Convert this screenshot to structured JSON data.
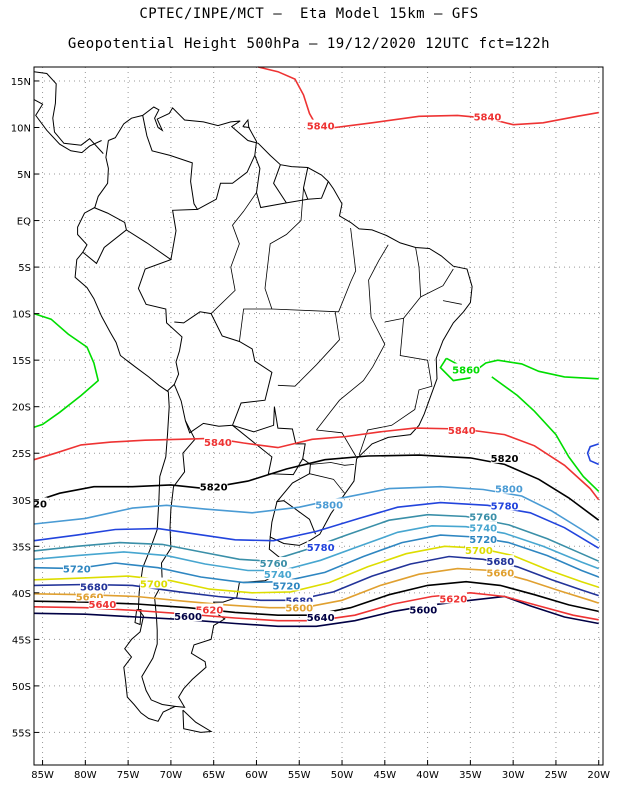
{
  "header": {
    "line1": "CPTEC/INPE/MCT –  Eta Model 15km – GFS",
    "line2": "Geopotential Height 500hPa – 19/12/2020 12UTC fct=122h"
  },
  "map": {
    "lon_range": [
      -86,
      -19.5
    ],
    "lat_range": [
      -58.5,
      16.5
    ],
    "lat_ticks": [
      {
        "value": 15,
        "label": "15N"
      },
      {
        "value": 10,
        "label": "10N"
      },
      {
        "value": 5,
        "label": "5N"
      },
      {
        "value": 0,
        "label": "EQ"
      },
      {
        "value": -5,
        "label": "5S"
      },
      {
        "value": -10,
        "label": "10S"
      },
      {
        "value": -15,
        "label": "15S"
      },
      {
        "value": -20,
        "label": "20S"
      },
      {
        "value": -25,
        "label": "25S"
      },
      {
        "value": -30,
        "label": "30S"
      },
      {
        "value": -35,
        "label": "35S"
      },
      {
        "value": -40,
        "label": "40S"
      },
      {
        "value": -45,
        "label": "45S"
      },
      {
        "value": -50,
        "label": "50S"
      },
      {
        "value": -55,
        "label": "55S"
      }
    ],
    "lon_ticks": [
      {
        "value": -85,
        "label": "85W"
      },
      {
        "value": -80,
        "label": "80W"
      },
      {
        "value": -75,
        "label": "75W"
      },
      {
        "value": -70,
        "label": "70W"
      },
      {
        "value": -65,
        "label": "65W"
      },
      {
        "value": -60,
        "label": "60W"
      },
      {
        "value": -55,
        "label": "55W"
      },
      {
        "value": -50,
        "label": "50W"
      },
      {
        "value": -45,
        "label": "45W"
      },
      {
        "value": -40,
        "label": "40W"
      },
      {
        "value": -35,
        "label": "35W"
      },
      {
        "value": -30,
        "label": "30W"
      },
      {
        "value": -25,
        "label": "25W"
      },
      {
        "value": -20,
        "label": "20W"
      }
    ],
    "grid": "dotted",
    "land_outline_color": "#000000",
    "contours": [
      {
        "level": "5860",
        "color": "#00dd00",
        "label_pos": [
          -35.5,
          -16
        ]
      },
      {
        "level": "5840",
        "color": "#ee3333",
        "label_pos": [
          -36,
          -22.5
        ]
      },
      {
        "level": "5820",
        "color": "#000000",
        "label_pos": [
          -31,
          -25.5
        ]
      },
      {
        "level": "5800",
        "color": "#4a9bd4",
        "label_pos": [
          -30.5,
          -28.8
        ]
      },
      {
        "level": "5780",
        "color": "#2244dd",
        "label_pos": [
          -31,
          -30.6
        ]
      },
      {
        "level": "5760",
        "color": "#3a8fa8",
        "label_pos": [
          -33.5,
          -31.8
        ]
      },
      {
        "level": "5740",
        "color": "#47a6d0",
        "label_pos": [
          -33.5,
          -33.0
        ]
      },
      {
        "level": "5720",
        "color": "#2e86c1",
        "label_pos": [
          -33.5,
          -34.2
        ]
      },
      {
        "level": "5700",
        "color": "#dddd00",
        "label_pos": [
          -34,
          -35.4
        ]
      },
      {
        "level": "5680",
        "color": "#223399",
        "label_pos": [
          -31.5,
          -36.6
        ]
      },
      {
        "level": "5660",
        "color": "#e0a030",
        "label_pos": [
          -31.5,
          -37.8
        ]
      },
      {
        "level": "5620",
        "color": "#ee3333",
        "label_pos": [
          -37,
          -40.6
        ]
      },
      {
        "level": "5600",
        "color": "#000044",
        "label_pos": [
          -40.5,
          -41.8
        ]
      }
    ],
    "extra_labels": [
      {
        "text": "5840",
        "color": "#ee3333",
        "pos": [
          -52.5,
          10.2
        ]
      },
      {
        "text": "5840",
        "color": "#ee3333",
        "pos": [
          -33,
          11.2
        ]
      },
      {
        "text": "5840",
        "color": "#ee3333",
        "pos": [
          -64.5,
          -23.8
        ]
      },
      {
        "text": "5820",
        "color": "#000000",
        "pos": [
          -65,
          -28.6
        ]
      },
      {
        "text": "5800",
        "color": "#4a9bd4",
        "pos": [
          -51.5,
          -30.5
        ]
      },
      {
        "text": "5780",
        "color": "#2244dd",
        "pos": [
          -52.5,
          -35.1
        ]
      },
      {
        "text": "5760",
        "color": "#3a8fa8",
        "pos": [
          -58,
          -36.8
        ]
      },
      {
        "text": "5740",
        "color": "#47a6d0",
        "pos": [
          -57.5,
          -38.0
        ]
      },
      {
        "text": "5720",
        "color": "#2e86c1",
        "pos": [
          -56.5,
          -39.2
        ]
      },
      {
        "text": "5720",
        "color": "#2e86c1",
        "pos": [
          -81,
          -37.4
        ]
      },
      {
        "text": "5680",
        "color": "#223399",
        "pos": [
          -55,
          -40.8
        ]
      },
      {
        "text": "5680",
        "color": "#223399",
        "pos": [
          -79,
          -39.3
        ]
      },
      {
        "text": "5700",
        "color": "#dddd00",
        "pos": [
          -72,
          -39.0
        ]
      },
      {
        "text": "5660",
        "color": "#e0a030",
        "pos": [
          -79.5,
          -40.4
        ]
      },
      {
        "text": "5640",
        "color": "#ee3333",
        "pos": [
          -78,
          -41.2
        ]
      },
      {
        "text": "5620",
        "color": "#ee3333",
        "pos": [
          -65.5,
          -41.8
        ]
      },
      {
        "text": "5600",
        "color": "#000044",
        "pos": [
          -68,
          -42.5
        ]
      },
      {
        "text": "5640",
        "color": "#000044",
        "pos": [
          -52.5,
          -42.6
        ]
      },
      {
        "text": "5600",
        "color": "#e0a030",
        "pos": [
          -55,
          -41.6
        ]
      },
      {
        "text": "20",
        "color": "#000000",
        "pos": [
          -85.3,
          -30.4
        ]
      }
    ]
  }
}
